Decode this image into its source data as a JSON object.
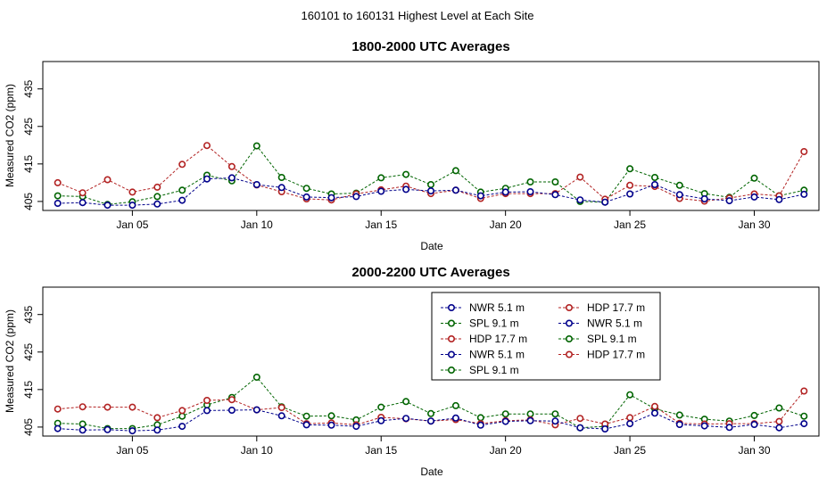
{
  "figure_title": "160101  to  160131 Highest Level at Each Site",
  "series_colors": {
    "NWR": "#00008B",
    "SPL": "#006400",
    "HDP": "#B22222"
  },
  "legend": [
    {
      "site": "NWR",
      "label": "NWR   5.1 m",
      "color": "#00008B"
    },
    {
      "site": "SPL",
      "label": "SPL   9.1 m",
      "color": "#006400"
    },
    {
      "site": "HDP",
      "label": "HDP   17.7 m",
      "color": "#B22222"
    },
    {
      "site": "NWR",
      "label": "NWR   5.1 m",
      "color": "#00008B"
    },
    {
      "site": "SPL",
      "label": "SPL   9.1 m",
      "color": "#006400"
    },
    {
      "site": "HDP",
      "label": "HDP   17.7 m",
      "color": "#B22222"
    },
    {
      "site": "NWR",
      "label": "NWR   5.1 m",
      "color": "#00008B"
    },
    {
      "site": "SPL",
      "label": "SPL   9.1 m",
      "color": "#006400"
    },
    {
      "site": "HDP",
      "label": "HDP   17.7 m",
      "color": "#B22222"
    }
  ],
  "chart_data": [
    {
      "type": "line",
      "title": "1800-2000 UTC Averages",
      "xlabel": "Date",
      "ylabel": "Measured CO2 (ppm)",
      "xlim": [
        1.4,
        32.6
      ],
      "ylim": [
        402.6,
        442.3
      ],
      "x_ticks": [
        {
          "v": 5,
          "label": "Jan 05"
        },
        {
          "v": 10,
          "label": "Jan 10"
        },
        {
          "v": 15,
          "label": "Jan 15"
        },
        {
          "v": 20,
          "label": "Jan 20"
        },
        {
          "v": 25,
          "label": "Jan 25"
        },
        {
          "v": 30,
          "label": "Jan 30"
        }
      ],
      "y_ticks": [
        405,
        415,
        425,
        435
      ],
      "x": [
        2,
        3,
        4,
        5,
        6,
        7,
        8,
        9,
        10,
        11,
        12,
        13,
        14,
        15,
        16,
        17,
        18,
        19,
        20,
        21,
        22,
        23,
        24,
        25,
        26,
        27,
        28,
        29,
        30,
        31,
        32
      ],
      "series": [
        {
          "name": "NWR",
          "values": [
            404.5,
            404.7,
            404.0,
            404.0,
            404.3,
            405.3,
            411.0,
            411.3,
            409.5,
            408.7,
            406.2,
            406.0,
            406.3,
            407.7,
            408.2,
            407.8,
            408.0,
            406.5,
            407.5,
            407.6,
            406.8,
            405.4,
            404.8,
            407.0,
            409.5,
            406.8,
            405.7,
            405.2,
            406.2,
            405.5,
            406.9
          ]
        },
        {
          "name": "SPL",
          "values": [
            406.5,
            406.3,
            404.2,
            404.9,
            406.3,
            408.0,
            412.0,
            410.5,
            419.8,
            411.4,
            408.5,
            407.0,
            407.2,
            411.3,
            412.2,
            409.5,
            413.2,
            407.5,
            408.5,
            410.2,
            410.2,
            405.0,
            404.8,
            413.7,
            411.4,
            409.3,
            407.1,
            406.1,
            411.2,
            406.5,
            408.0
          ]
        },
        {
          "name": "HDP",
          "values": [
            410.0,
            407.3,
            410.8,
            407.5,
            408.8,
            414.9,
            419.9,
            414.3,
            409.4,
            407.6,
            405.7,
            405.4,
            407.0,
            408.1,
            409.1,
            407.1,
            408.0,
            405.8,
            407.1,
            407.1,
            407.1,
            411.5,
            405.6,
            409.3,
            409.0,
            405.8,
            405.1,
            405.9,
            407.0,
            406.5,
            418.3
          ]
        }
      ]
    },
    {
      "type": "line",
      "title": "2000-2200 UTC Averages",
      "xlabel": "Date",
      "ylabel": "Measured CO2 (ppm)",
      "xlim": [
        1.4,
        32.6
      ],
      "ylim": [
        402.6,
        442.3
      ],
      "x_ticks": [
        {
          "v": 5,
          "label": "Jan 05"
        },
        {
          "v": 10,
          "label": "Jan 10"
        },
        {
          "v": 15,
          "label": "Jan 15"
        },
        {
          "v": 20,
          "label": "Jan 20"
        },
        {
          "v": 25,
          "label": "Jan 25"
        },
        {
          "v": 30,
          "label": "Jan 30"
        }
      ],
      "y_ticks": [
        405,
        415,
        425,
        435
      ],
      "x": [
        2,
        3,
        4,
        5,
        6,
        7,
        8,
        9,
        10,
        11,
        12,
        13,
        14,
        15,
        16,
        17,
        18,
        19,
        20,
        21,
        22,
        23,
        24,
        25,
        26,
        27,
        28,
        29,
        30,
        31,
        32
      ],
      "series": [
        {
          "name": "NWR",
          "values": [
            404.6,
            404.2,
            404.3,
            404.0,
            404.2,
            405.2,
            409.4,
            409.5,
            409.6,
            408.0,
            405.6,
            405.5,
            405.2,
            406.7,
            407.3,
            406.6,
            407.4,
            405.5,
            406.5,
            406.7,
            406.6,
            404.8,
            404.5,
            405.9,
            408.7,
            405.7,
            405.3,
            404.9,
            405.7,
            404.8,
            405.9
          ]
        },
        {
          "name": "SPL",
          "values": [
            406.0,
            405.8,
            404.6,
            404.6,
            405.6,
            407.9,
            410.9,
            412.9,
            418.3,
            410.4,
            407.9,
            408.0,
            406.9,
            410.3,
            411.8,
            408.6,
            410.7,
            407.5,
            408.5,
            408.5,
            408.5,
            404.8,
            405.2,
            413.6,
            409.9,
            408.2,
            407.1,
            406.6,
            408.1,
            410.1,
            407.9
          ]
        },
        {
          "name": "HDP",
          "values": [
            409.8,
            410.4,
            410.3,
            410.3,
            407.5,
            409.4,
            412.1,
            412.3,
            409.6,
            410.2,
            405.9,
            406.1,
            405.6,
            407.6,
            407.2,
            406.6,
            407.0,
            405.9,
            406.7,
            406.9,
            405.6,
            407.3,
            405.8,
            407.5,
            410.5,
            406.0,
            405.8,
            405.9,
            405.9,
            406.5,
            414.6
          ]
        }
      ]
    }
  ]
}
